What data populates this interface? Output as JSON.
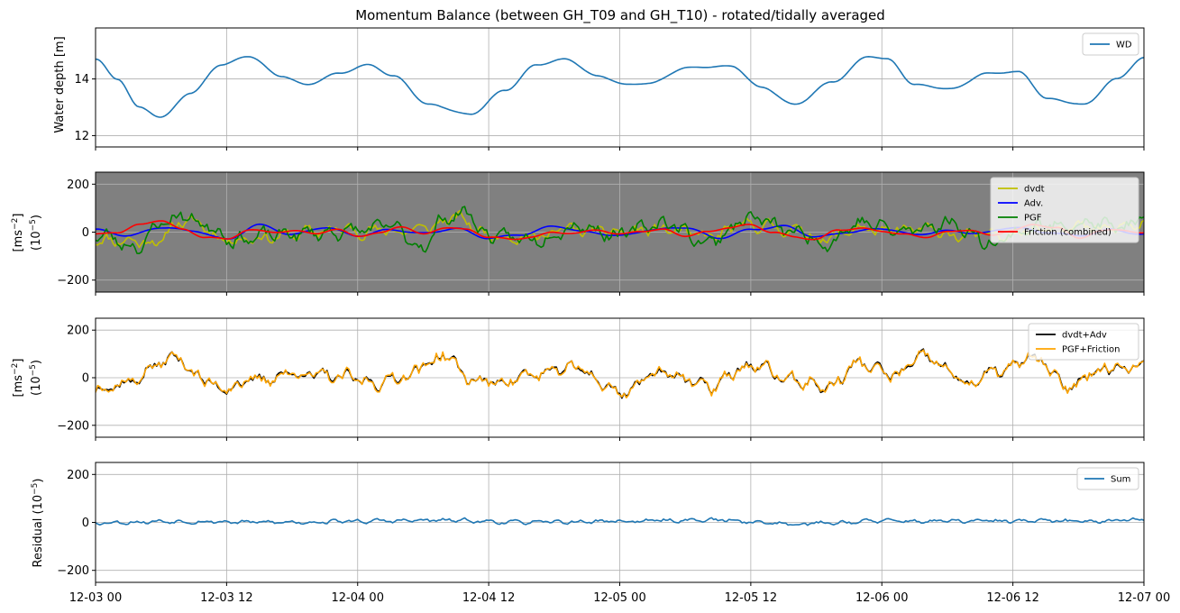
{
  "figure": {
    "title": "Momentum Balance (between GH_T09 and GH_T10) - rotated/tidally averaged"
  },
  "chart_data": [
    {
      "type": "line",
      "ylabel": "Water depth [m]",
      "xlim": [
        0,
        96
      ],
      "ylim": [
        11.6,
        15.8
      ],
      "yticks": [
        12,
        14
      ],
      "ytick_labels": [
        "12",
        "14"
      ],
      "grid": true,
      "legend": "top-right",
      "background": "#ffffff",
      "series": [
        {
          "name": "WD",
          "color": "#1f77b4",
          "kind": "tide",
          "x": [
            0,
            2,
            4,
            6,
            8.7,
            11.5,
            14,
            17,
            19.3,
            22.3,
            25,
            27.3,
            30.5,
            34.3,
            37.5,
            40.4,
            43,
            46,
            48.7,
            50.7,
            54.2,
            58.2,
            61,
            64,
            67.5,
            70.8,
            72.5,
            75,
            78.3,
            81.7,
            84.5,
            87.2,
            90.5,
            93.5,
            96
          ],
          "y": [
            14.7,
            14.0,
            13.0,
            12.65,
            13.5,
            14.5,
            14.8,
            14.1,
            13.8,
            14.2,
            14.5,
            14.1,
            13.1,
            12.75,
            13.6,
            14.5,
            14.7,
            14.1,
            13.8,
            13.85,
            14.4,
            14.45,
            13.7,
            13.1,
            13.9,
            14.8,
            14.7,
            13.8,
            13.65,
            14.2,
            14.25,
            13.3,
            13.1,
            14.0,
            14.75
          ]
        }
      ]
    },
    {
      "type": "line",
      "ylabel": "[ms$^{-2}$] (10$^{-5}$)",
      "ylabel_line1": "[ms",
      "ylabel_sup1": "−2",
      "ylabel_close1": "]",
      "ylabel_line2": "(10",
      "ylabel_sup2": "−5",
      "ylabel_close2": ")",
      "xlim": [
        0,
        96
      ],
      "ylim": [
        -250,
        250
      ],
      "yticks": [
        -200,
        0,
        200
      ],
      "ytick_labels": [
        "−200",
        "0",
        "200"
      ],
      "grid": true,
      "legend": "top-right",
      "background": "#808080",
      "series": [
        {
          "name": "dvdt",
          "color": "#bfbf00",
          "kind": "noisy",
          "amp": 38,
          "seed": 11,
          "x": [
            0,
            6,
            7,
            8,
            9,
            12,
            16,
            22,
            28,
            31,
            32,
            33,
            36,
            40,
            43,
            48,
            52,
            56,
            60,
            64,
            67,
            70,
            72,
            76,
            80,
            84,
            88,
            92,
            96
          ],
          "y": [
            -30,
            -40,
            20,
            45,
            40,
            -30,
            -20,
            10,
            5,
            20,
            50,
            60,
            -10,
            -20,
            10,
            0,
            10,
            -20,
            30,
            10,
            -30,
            20,
            0,
            10,
            -20,
            0,
            30,
            10,
            30
          ]
        },
        {
          "name": "Adv.",
          "color": "#0000ff",
          "kind": "smooth",
          "x": [
            0,
            3,
            6,
            9,
            12,
            15,
            18,
            21,
            24,
            27,
            30,
            33,
            36,
            39,
            42,
            45,
            48,
            51,
            54,
            57,
            60,
            63,
            66,
            69,
            72,
            75,
            78,
            81,
            84,
            87,
            90,
            93,
            96
          ],
          "y": [
            10,
            -15,
            20,
            5,
            -30,
            30,
            -10,
            20,
            -15,
            10,
            -5,
            15,
            -25,
            -10,
            25,
            0,
            -15,
            10,
            20,
            -25,
            10,
            25,
            -20,
            0,
            15,
            -10,
            5,
            -5,
            20,
            0,
            -15,
            10,
            -10
          ]
        },
        {
          "name": "PGF",
          "color": "#008000",
          "kind": "noisy",
          "amp": 45,
          "seed": 23,
          "x": [
            0,
            4,
            6,
            8,
            10,
            13,
            17,
            22,
            27,
            30,
            32,
            34,
            36,
            40,
            44,
            48,
            52,
            56,
            60,
            64,
            67,
            70,
            74,
            78,
            82,
            86,
            90,
            94,
            96
          ],
          "y": [
            -10,
            -60,
            40,
            70,
            30,
            -30,
            -10,
            0,
            20,
            -60,
            60,
            80,
            -20,
            -30,
            30,
            -10,
            40,
            -40,
            60,
            0,
            -40,
            40,
            0,
            40,
            -40,
            20,
            40,
            20,
            50
          ]
        },
        {
          "name": "Friction (combined)",
          "color": "#ff0000",
          "kind": "smooth",
          "x": [
            0,
            2,
            4,
            6,
            8,
            10,
            12,
            14,
            16,
            18,
            20,
            22,
            24,
            26,
            28,
            30,
            32,
            34,
            36,
            38,
            40,
            42,
            44,
            46,
            48,
            50,
            52,
            54,
            56,
            58,
            60,
            62,
            64,
            66,
            68,
            70,
            72,
            74,
            76,
            78,
            80,
            82,
            84,
            86,
            88,
            90,
            92,
            94,
            96
          ],
          "y": [
            -10,
            0,
            30,
            50,
            10,
            -20,
            -30,
            10,
            0,
            5,
            -5,
            10,
            -15,
            -5,
            25,
            -10,
            20,
            10,
            -20,
            -30,
            -20,
            0,
            -5,
            10,
            -10,
            5,
            10,
            -15,
            0,
            20,
            30,
            0,
            -20,
            -30,
            10,
            15,
            5,
            -10,
            -20,
            0,
            10,
            -15,
            10,
            30,
            20,
            -25,
            5,
            10,
            -5
          ]
        }
      ]
    },
    {
      "type": "line",
      "ylabel": "[ms$^{-2}$] (10$^{-5}$)",
      "ylabel_line1": "[ms",
      "ylabel_sup1": "−2",
      "ylabel_close1": "]",
      "ylabel_line2": "(10",
      "ylabel_sup2": "−5",
      "ylabel_close2": ")",
      "xlim": [
        0,
        96
      ],
      "ylim": [
        -250,
        250
      ],
      "yticks": [
        -200,
        0,
        200
      ],
      "ytick_labels": [
        "−200",
        "0",
        "200"
      ],
      "grid": true,
      "legend": "top-right",
      "background": "#ffffff",
      "series": [
        {
          "name": "dvdt+Adv",
          "color": "#000000",
          "kind": "noisy",
          "amp": 40,
          "seed": 37,
          "x": [
            0,
            3,
            6,
            7.5,
            9,
            11,
            14,
            18,
            22,
            26,
            29,
            30.5,
            32,
            34,
            36,
            40,
            44,
            48,
            52,
            56,
            60,
            64,
            67,
            70,
            73,
            76,
            80,
            83,
            86,
            89,
            92,
            96
          ],
          "y": [
            -40,
            -20,
            60,
            90,
            20,
            -40,
            -20,
            20,
            0,
            -20,
            20,
            60,
            100,
            0,
            -20,
            10,
            40,
            -60,
            30,
            -40,
            50,
            -10,
            -40,
            60,
            10,
            80,
            -20,
            30,
            80,
            -40,
            40,
            60
          ]
        },
        {
          "name": "PGF+Friction",
          "color": "#ffa500",
          "kind": "follow",
          "follow": 0,
          "amp": 8,
          "seed": 41
        }
      ]
    },
    {
      "type": "line",
      "ylabel": "Residual (10$^{-5}$)",
      "ylabel_line1": "Residual (10",
      "ylabel_sup1": "−5",
      "ylabel_close1": ")",
      "xlim": [
        0,
        96
      ],
      "ylim": [
        -250,
        250
      ],
      "yticks": [
        -200,
        0,
        200
      ],
      "ytick_labels": [
        "−200",
        "0",
        "200"
      ],
      "grid": true,
      "legend": "top-right",
      "background": "#ffffff",
      "xticks": [
        0,
        12,
        24,
        36,
        48,
        60,
        72,
        84,
        96
      ],
      "xtick_labels": [
        "12-03 00",
        "12-03 12",
        "12-04 00",
        "12-04 12",
        "12-05 00",
        "12-05 12",
        "12-06 00",
        "12-06 12",
        "12-07 00"
      ],
      "series": [
        {
          "name": "Sum",
          "color": "#1f77b4",
          "kind": "noisy",
          "amp": 12,
          "seed": 53,
          "x": [
            0,
            8,
            16,
            24,
            32,
            40,
            48,
            56,
            64,
            72,
            80,
            88,
            96
          ],
          "y": [
            0,
            5,
            0,
            5,
            8,
            0,
            5,
            10,
            -5,
            5,
            5,
            5,
            10
          ]
        }
      ]
    }
  ]
}
